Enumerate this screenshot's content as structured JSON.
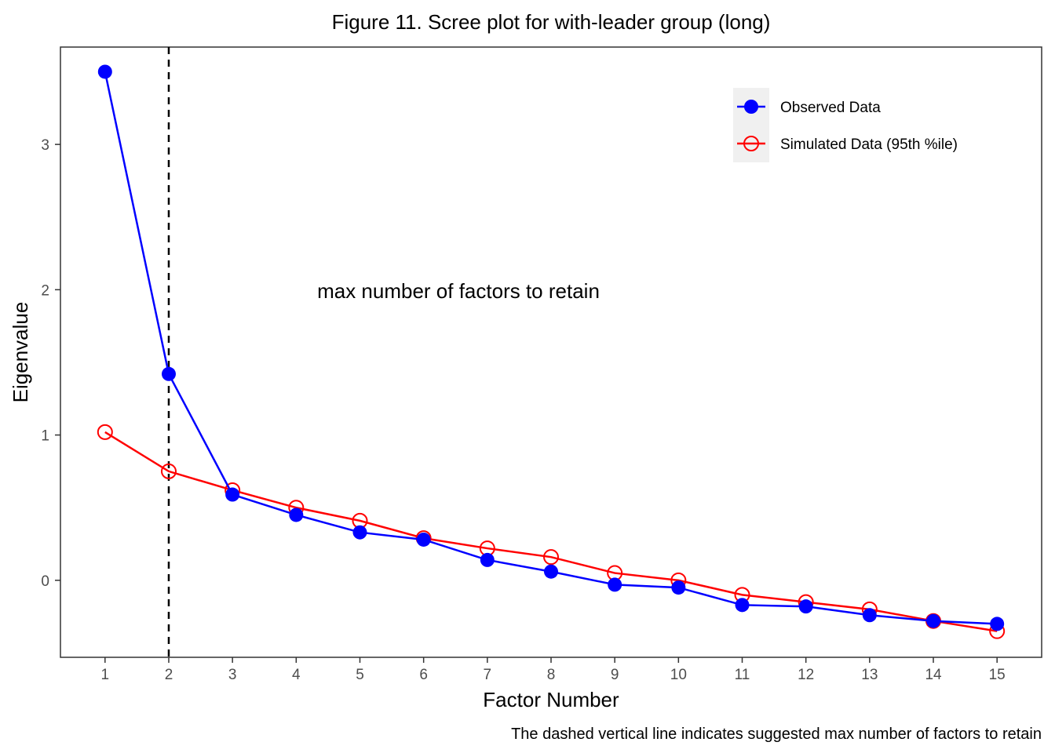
{
  "chart_data": {
    "type": "line",
    "title": "Figure 11. Scree plot for with-leader group (long)",
    "xlabel": "Factor Number",
    "ylabel": "Eigenvalue",
    "caption": "The dashed vertical line indicates suggested max number of factors to retain",
    "annotation": "max number of factors to retain",
    "x": [
      1,
      2,
      3,
      4,
      5,
      6,
      7,
      8,
      9,
      10,
      11,
      12,
      13,
      14,
      15
    ],
    "x_ticks": [
      "1",
      "2",
      "3",
      "4",
      "5",
      "6",
      "7",
      "8",
      "9",
      "10",
      "11",
      "12",
      "13",
      "14",
      "15"
    ],
    "y_ticks": [
      "0",
      "1",
      "2",
      "3"
    ],
    "xlim": [
      0.3,
      15.7
    ],
    "ylim": [
      -0.53,
      3.67
    ],
    "grid": false,
    "legend_position": "top-right",
    "vline_x": 2,
    "series": [
      {
        "name": "Observed Data",
        "color": "#0000ff",
        "marker": "filled-circle",
        "values": [
          3.5,
          1.42,
          0.59,
          0.45,
          0.33,
          0.28,
          0.14,
          0.06,
          -0.03,
          -0.05,
          -0.17,
          -0.18,
          -0.24,
          -0.28,
          -0.3
        ]
      },
      {
        "name": "Simulated Data (95th %ile)",
        "color": "#ff0000",
        "marker": "open-circle",
        "values": [
          1.02,
          0.75,
          0.62,
          0.5,
          0.41,
          0.29,
          0.22,
          0.16,
          0.05,
          0.0,
          -0.1,
          -0.15,
          -0.2,
          -0.28,
          -0.35
        ]
      }
    ]
  }
}
